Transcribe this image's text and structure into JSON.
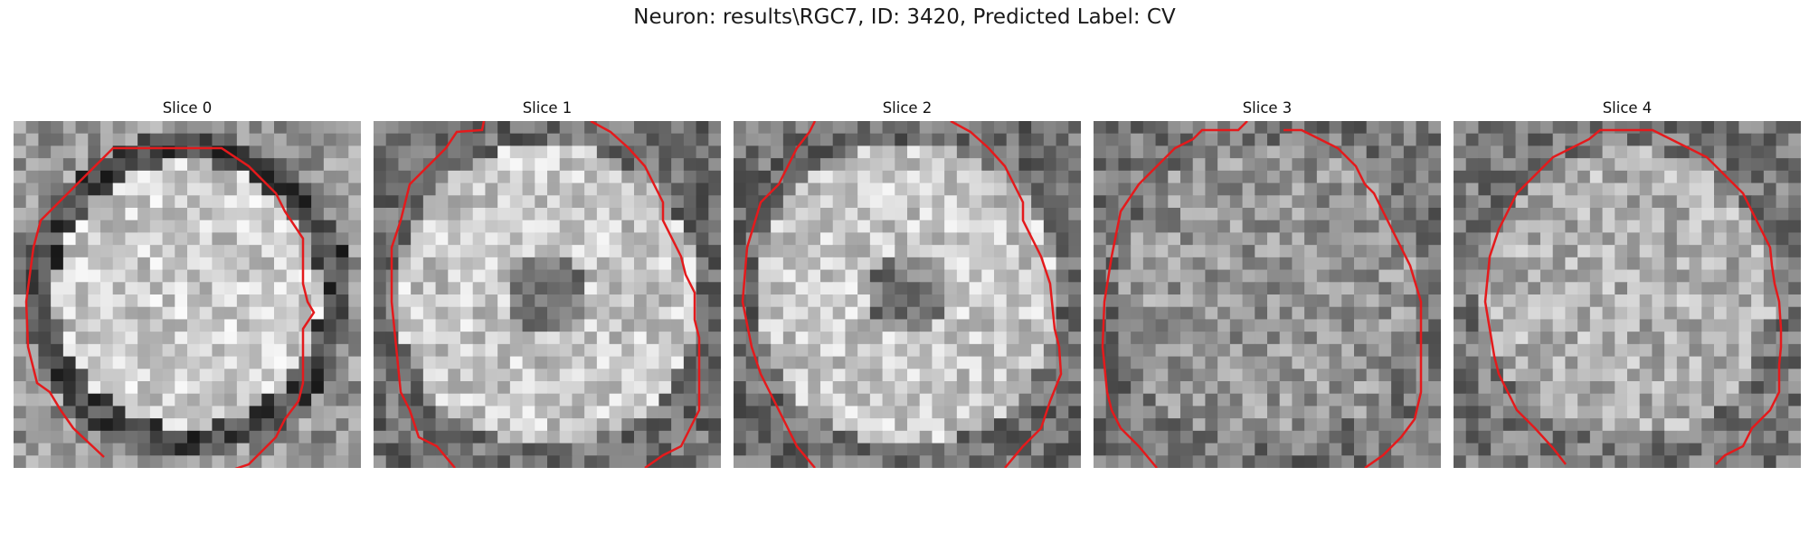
{
  "figure": {
    "title": "Neuron: results\\RGC7, ID: 3420, Predicted Label: CV"
  },
  "slices": [
    {
      "label": "Slice 0"
    },
    {
      "label": "Slice 1"
    },
    {
      "label": "Slice 2"
    },
    {
      "label": "Slice 3"
    },
    {
      "label": "Slice 4"
    }
  ],
  "colors": {
    "contour": "#e41a1c",
    "background": "#ffffff"
  },
  "image": {
    "grid_cells": 28,
    "colormap": "gray"
  }
}
